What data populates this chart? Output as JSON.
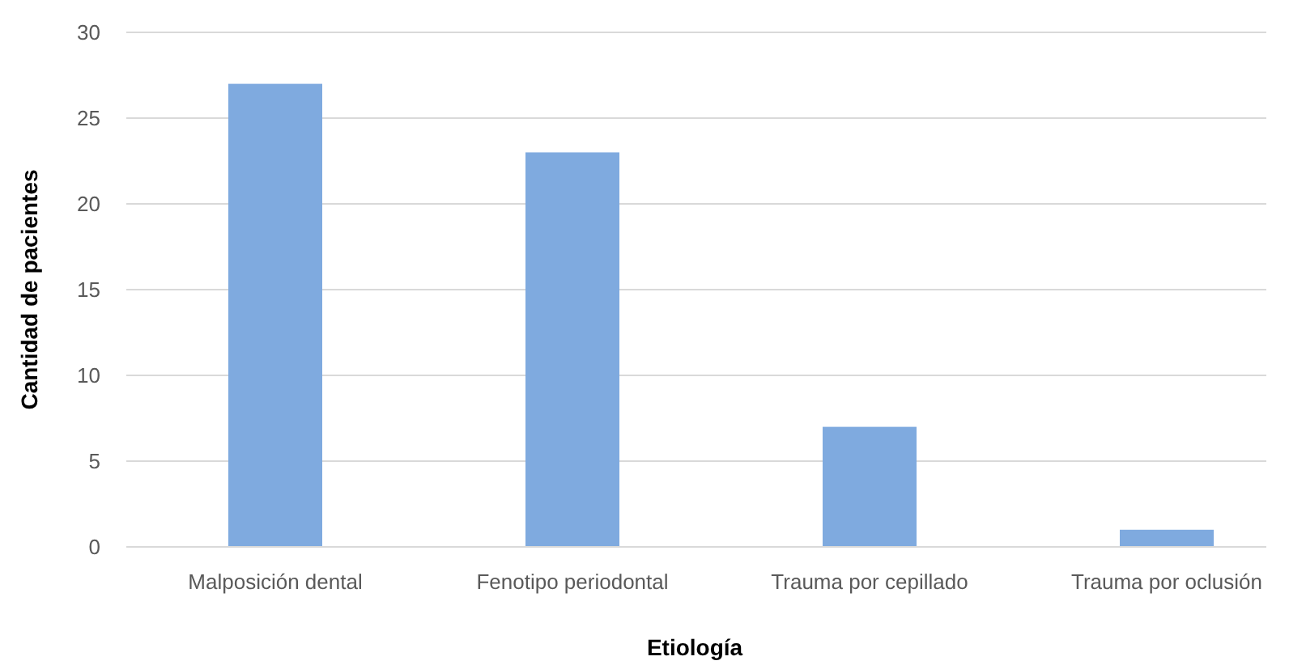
{
  "chart_data": {
    "type": "bar",
    "xlabel": "Etiología",
    "ylabel": "Cantidad de pacientes",
    "categories": [
      "Malposición dental",
      "Fenotipo periodontal",
      "Trauma por cepillado",
      "Trauma por oclusión"
    ],
    "values": [
      27,
      23,
      7,
      1
    ],
    "color": "#7faadf",
    "ylim": [
      0,
      30
    ],
    "yticks": [
      0,
      5,
      10,
      15,
      20,
      25,
      30
    ],
    "grid": "y"
  }
}
